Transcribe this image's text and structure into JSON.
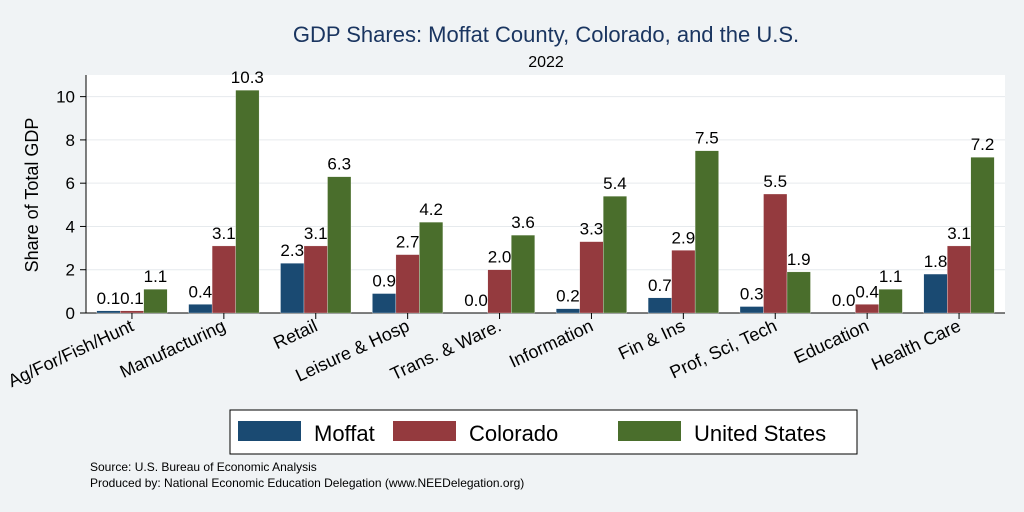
{
  "chart_data": {
    "type": "bar",
    "title": "GDP Shares: Moffat County, Colorado, and the U.S.",
    "subtitle": "2022",
    "ylabel": "Share of Total GDP",
    "xlabel": "",
    "ylim": [
      0,
      11
    ],
    "yticks": [
      0,
      2,
      4,
      6,
      8,
      10
    ],
    "grid": true,
    "legend_position": "bottom",
    "categories": [
      "Ag/For/Fish/Hunt",
      "Manufacturing",
      "Retail",
      "Leisure & Hosp",
      "Trans. & Ware.",
      "Information",
      "Fin & Ins",
      "Prof, Sci, Tech",
      "Education",
      "Health Care"
    ],
    "series": [
      {
        "name": "Moffat",
        "color": "#1a4a72",
        "values": [
          0.1,
          0.4,
          2.3,
          0.9,
          0.0,
          0.2,
          0.7,
          0.3,
          0.0,
          1.8
        ]
      },
      {
        "name": "Colorado",
        "color": "#943a3e",
        "values": [
          0.1,
          3.1,
          3.1,
          2.7,
          2.0,
          3.3,
          2.9,
          5.5,
          0.4,
          3.1
        ]
      },
      {
        "name": "United States",
        "color": "#4a6e2c",
        "values": [
          1.1,
          10.3,
          6.3,
          4.2,
          3.6,
          5.4,
          7.5,
          1.9,
          1.1,
          7.2
        ]
      }
    ]
  },
  "notes": {
    "source": "Source: U.S. Bureau of Economic Analysis",
    "produced_by": "Produced by: National Economic Education Delegation (www.NEEDelegation.org)"
  }
}
